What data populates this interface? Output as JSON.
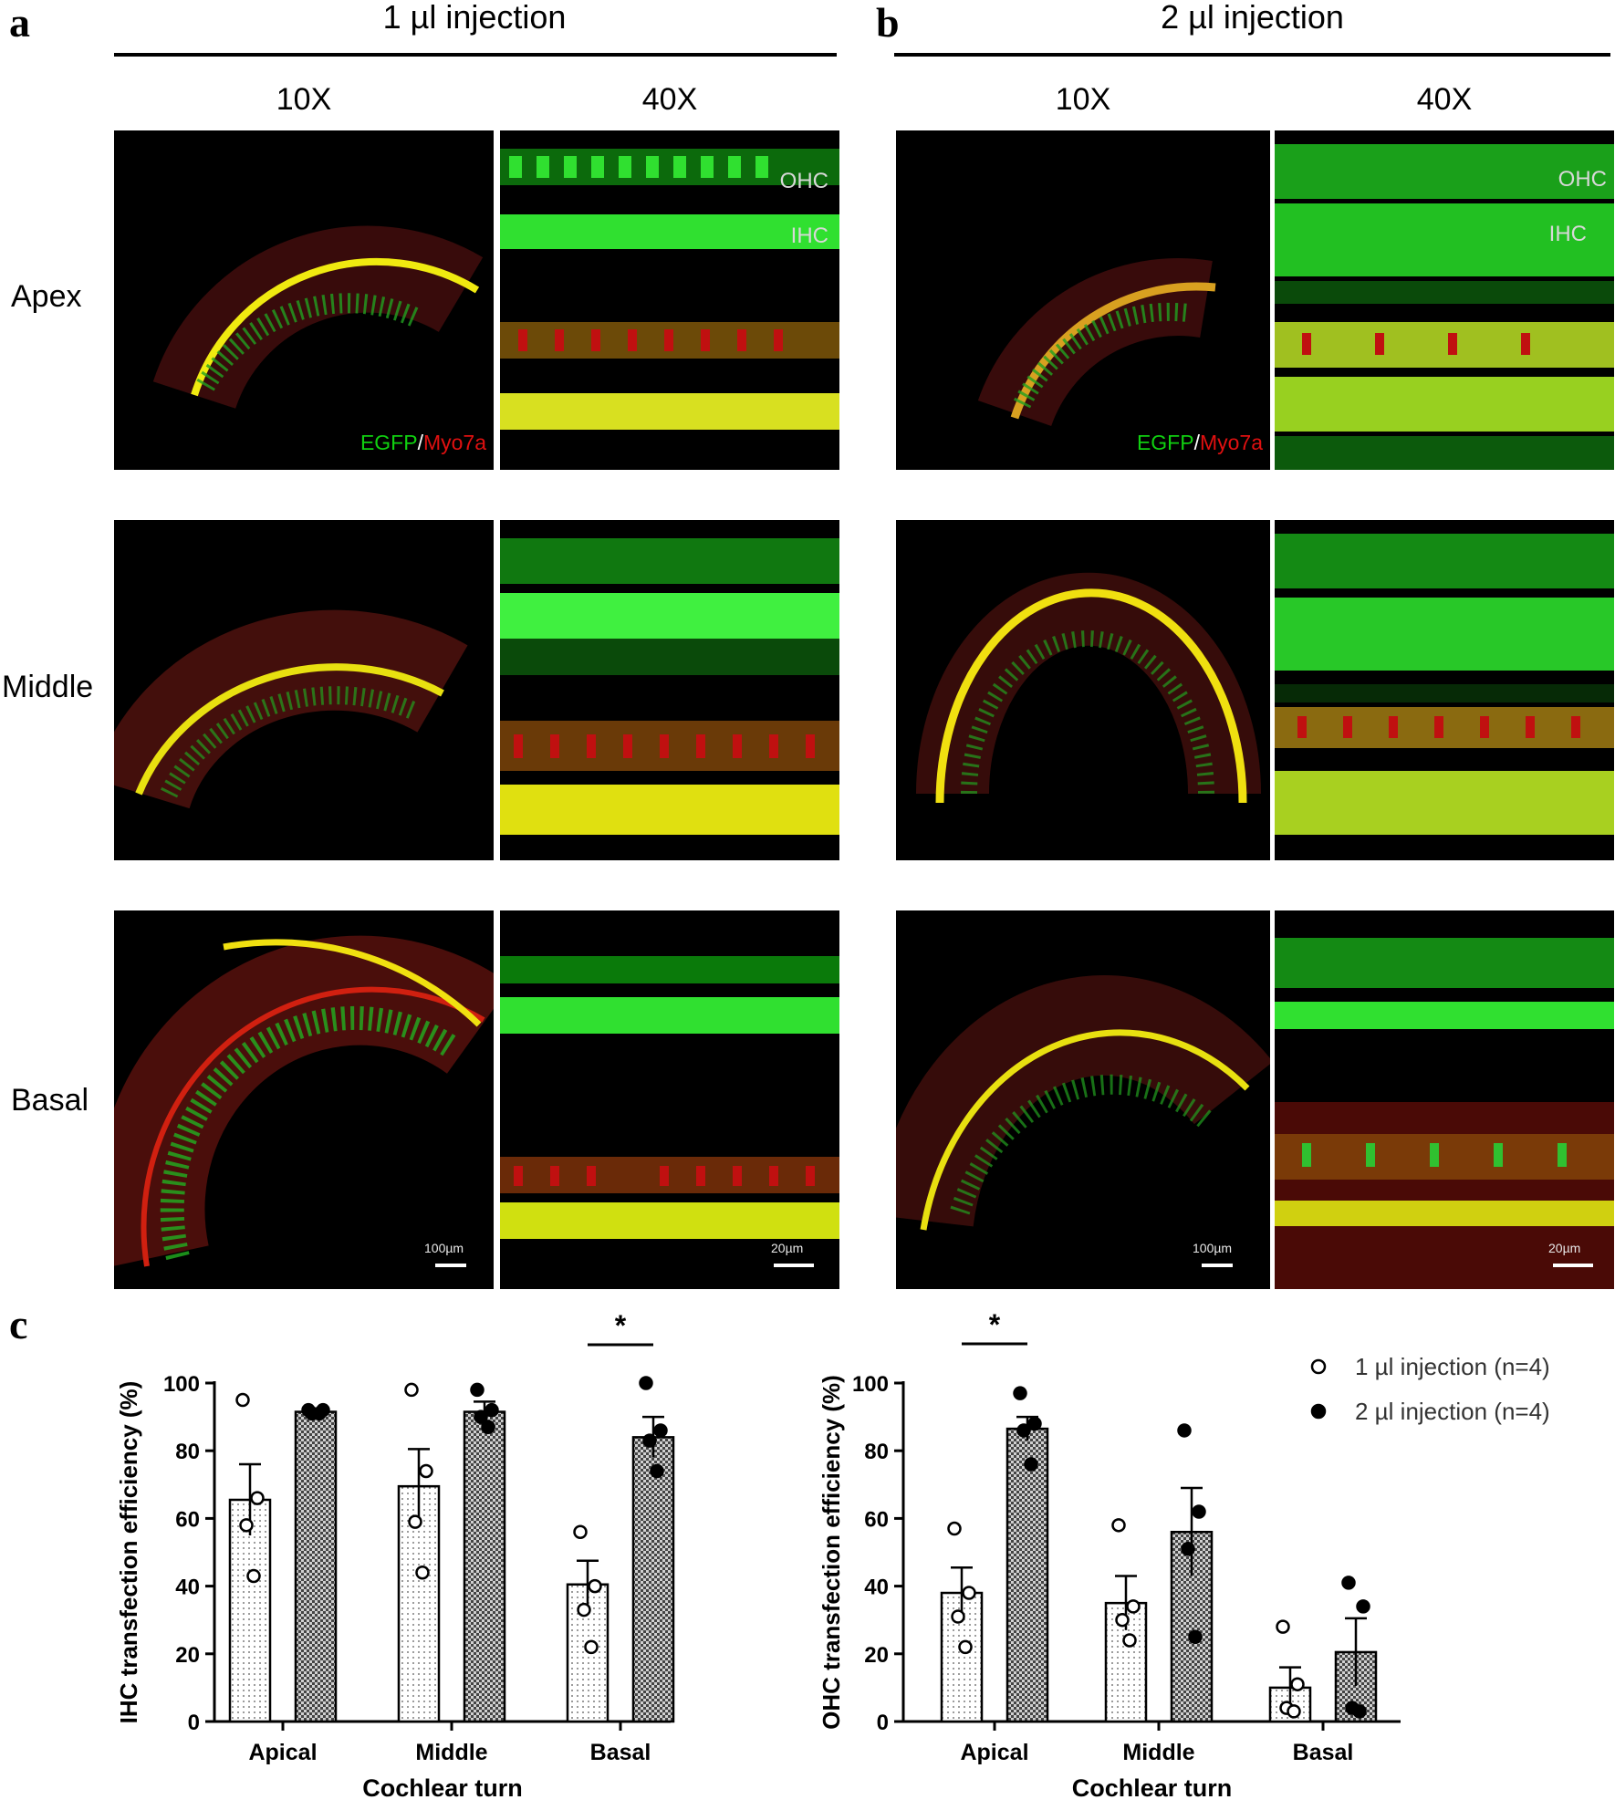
{
  "panel_labels": {
    "a": "a",
    "b": "b",
    "c": "c"
  },
  "groups": [
    {
      "title": "1 µl injection",
      "mag_left": "10X",
      "mag_right": "40X"
    },
    {
      "title": "2 µl injection",
      "mag_left": "10X",
      "mag_right": "40X"
    }
  ],
  "rows": [
    {
      "label": "Apex"
    },
    {
      "label": "Middle"
    },
    {
      "label": "Basal"
    }
  ],
  "stain": {
    "egfp": "EGFP",
    "sep": "/",
    "myo7a": "Myo7a"
  },
  "cell_labels": {
    "ohc": "OHC",
    "ihc": "IHC"
  },
  "scale": {
    "low_mag": "100µm",
    "high_mag": "20µm"
  },
  "colors": {
    "egfp": "#00e000",
    "myo7a": "#e00000",
    "merge": "#e8f000"
  },
  "chart_data": [
    {
      "type": "bar",
      "title": "",
      "xlabel": "Cochlear turn",
      "ylabel": "IHC transfection efficiency (%)",
      "categories": [
        "Apical",
        "Middle",
        "Basal"
      ],
      "ylim": [
        0,
        100
      ],
      "yticks": [
        0,
        20,
        40,
        60,
        80,
        100
      ],
      "series": [
        {
          "name": "1 µl injection (n=4)",
          "values": [
            65.5,
            69.5,
            40.5
          ],
          "sem": [
            10.5,
            11.0,
            7.0
          ],
          "points": [
            [
              95,
              66,
              58,
              43
            ],
            [
              98,
              74,
              59,
              44
            ],
            [
              56,
              40,
              33,
              22
            ]
          ]
        },
        {
          "name": "2 µl injection (n=4)",
          "values": [
            91.5,
            91.5,
            84
          ],
          "sem": [
            1.0,
            3.0,
            6.0
          ],
          "points": [
            [
              92,
              92,
              91,
              91
            ],
            [
              98,
              92,
              90,
              87
            ],
            [
              100,
              86,
              83,
              74
            ]
          ]
        }
      ],
      "significance": [
        {
          "category": "Basal",
          "label": "*"
        }
      ]
    },
    {
      "type": "bar",
      "title": "",
      "xlabel": "Cochlear turn",
      "ylabel": "OHC transfection efficiency (%)",
      "categories": [
        "Apical",
        "Middle",
        "Basal"
      ],
      "ylim": [
        0,
        100
      ],
      "yticks": [
        0,
        20,
        40,
        60,
        80,
        100
      ],
      "legend_position": "top-right",
      "series": [
        {
          "name": "1 µl injection (n=4)",
          "values": [
            38,
            35,
            10
          ],
          "sem": [
            7.5,
            8.0,
            6.0
          ],
          "points": [
            [
              57,
              38,
              31,
              22
            ],
            [
              58,
              34,
              30,
              24
            ],
            [
              28,
              11,
              4,
              3
            ]
          ]
        },
        {
          "name": "2 µl injection (n=4)",
          "values": [
            86.5,
            56,
            20.5
          ],
          "sem": [
            3.5,
            13.0,
            10.0
          ],
          "points": [
            [
              97,
              88,
              86,
              76
            ],
            [
              86,
              62,
              51,
              25
            ],
            [
              41,
              34,
              4,
              3
            ]
          ]
        }
      ],
      "significance": [
        {
          "category": "Apical",
          "label": "*"
        }
      ]
    }
  ]
}
